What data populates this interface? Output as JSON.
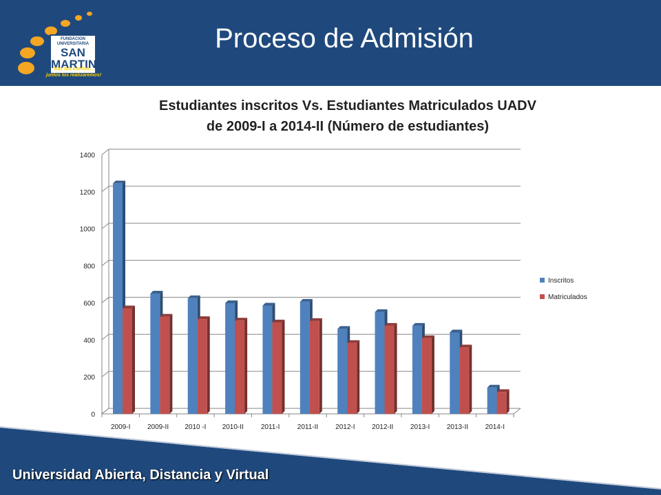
{
  "header": {
    "title": "Proceso de Admisión",
    "logo": {
      "top_text_1": "FUNDACION",
      "top_text_2": "UNIVERSITARIA",
      "name_1": "SAN",
      "name_2": "MARTIN",
      "slogan_1": "tras tus sueños...",
      "slogan_2": "juntos los realizaremos!"
    }
  },
  "footer": {
    "text": "Universidad Abierta, Distancia y Virtual"
  },
  "colors": {
    "header_bg": "#1f497d",
    "inscritos": "#4f81bd",
    "matriculados": "#c0504d",
    "gold": "#f5a623"
  },
  "chart_data": {
    "type": "bar",
    "title_line1": "Estudiantes inscritos Vs. Estudiantes Matriculados UADV",
    "title_line2": "de 2009-I a 2014-II  (Número de estudiantes)",
    "categories": [
      "2009-I",
      "2009-II",
      "2010 -I",
      "2010-II",
      "2011-I",
      "2011-II",
      "2012-I",
      "2012-II",
      "2013-I",
      "2013-II",
      "2014-I"
    ],
    "series": [
      {
        "name": "Inscritos",
        "color": "#4f81bd",
        "values": [
          1245,
          650,
          625,
          598,
          585,
          606,
          459,
          550,
          476,
          440,
          142
        ]
      },
      {
        "name": "Matriculados",
        "color": "#c0504d",
        "values": [
          570,
          525,
          512,
          504,
          494,
          502,
          383,
          476,
          409,
          359,
          118
        ]
      }
    ],
    "ylim": [
      0,
      1400
    ],
    "yticks": [
      0,
      200,
      400,
      600,
      800,
      1000,
      1200,
      1400
    ],
    "grid": true,
    "legend_position": "right",
    "three_d": true
  }
}
